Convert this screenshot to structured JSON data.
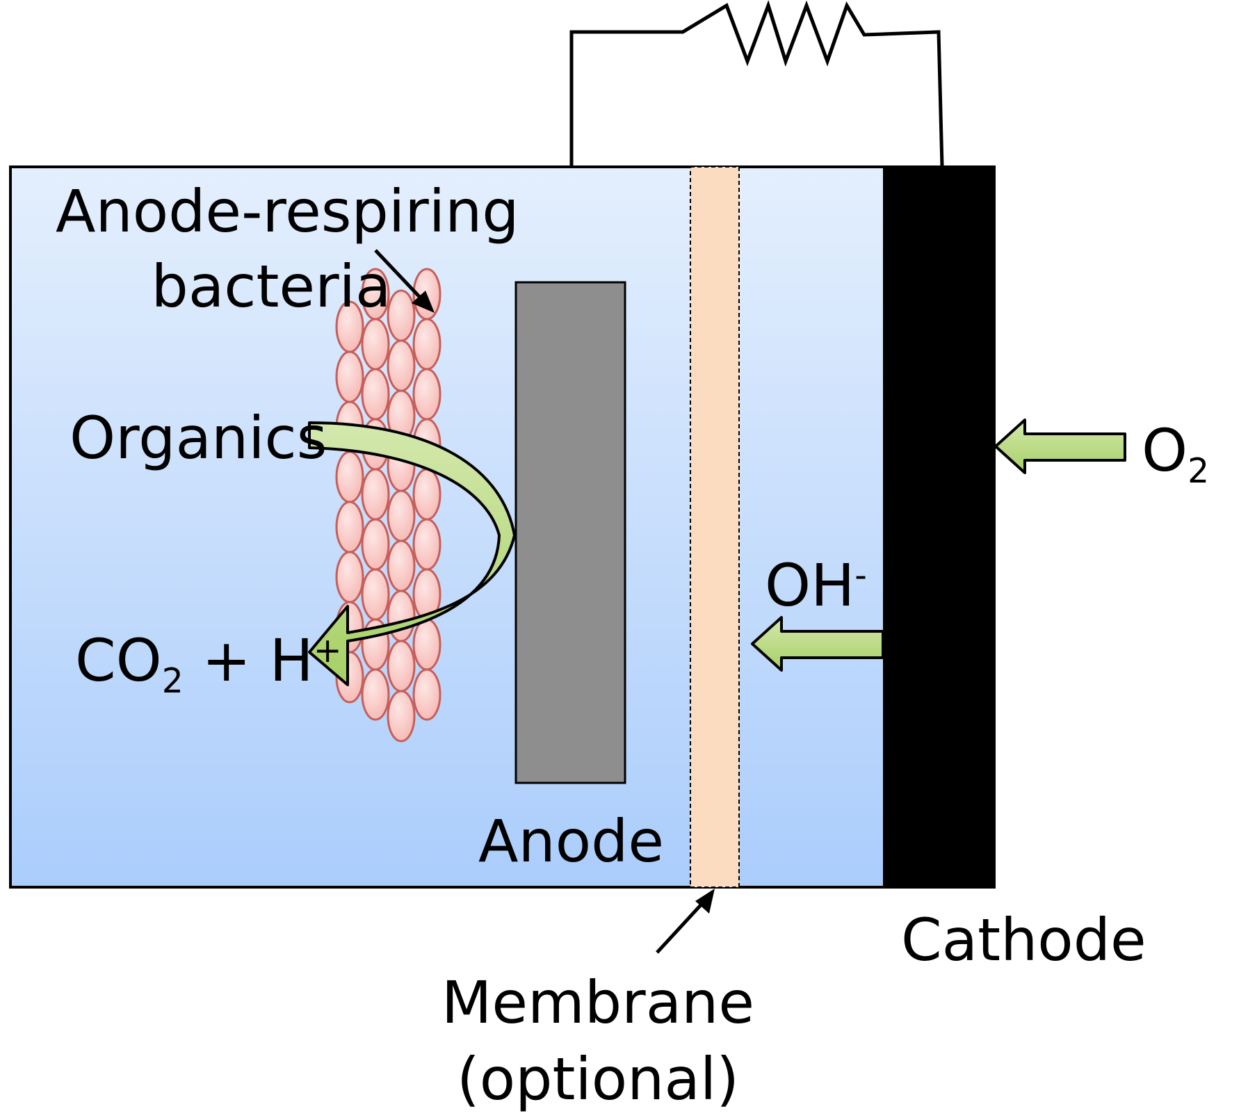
{
  "labels": {
    "bacteria_line1": "Anode-respiring",
    "bacteria_line2": "bacteria",
    "organics": "Organics",
    "co2_base": "CO",
    "co2_sub": "2",
    "co2_plus": "+ H",
    "co2_sup": "+",
    "anode": "Anode",
    "membrane_line1": "Membrane",
    "membrane_line2": "(optional)",
    "cathode": "Cathode",
    "o2_base": "O",
    "o2_sub": "2",
    "oh_base": "OH",
    "oh_sup": "-"
  },
  "colors": {
    "solution_top": "#e4effd",
    "solution_bottom": "#abcdfc",
    "anode": "#8e8e8e",
    "cathode": "#000000",
    "membrane": "#fcdcc0",
    "bacteria_fill": "#f9c9c6",
    "bacteria_stroke": "#c55f5b",
    "arrow_fill": "#b7d88b",
    "arrow_stroke": "#000000"
  }
}
